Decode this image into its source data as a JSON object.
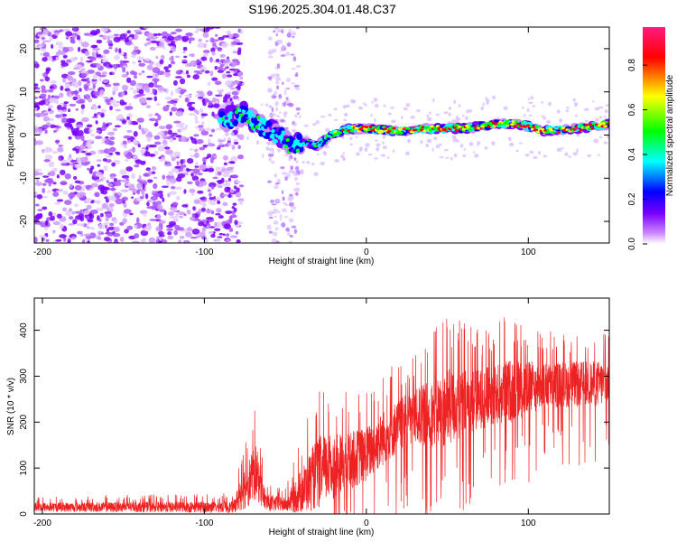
{
  "title": "S196.2025.304.01.48.C37",
  "chart_data": [
    {
      "type": "heatmap",
      "xlabel": "Height of straight line (km)",
      "ylabel": "Frequency (Hz)",
      "xlim": [
        -205,
        150
      ],
      "ylim": [
        -25,
        25
      ],
      "xticks": [
        -200,
        -100,
        0,
        100
      ],
      "yticks": [
        -20,
        -10,
        0,
        10,
        20
      ],
      "colorbar": {
        "label": "Normalized spectral amplitude",
        "range": [
          0,
          0.97
        ],
        "ticks": [
          0.0,
          0.2,
          0.4,
          0.6,
          0.8
        ],
        "colors": [
          "#ffffff",
          "#cc88ff",
          "#7a00ff",
          "#0000ff",
          "#00ffff",
          "#00ff00",
          "#ffff00",
          "#ff0000",
          "#ff1a80"
        ]
      },
      "features": {
        "noise_region_km": [
          -205,
          -85
        ],
        "gap_km": [
          -87,
          -55
        ],
        "signal_start_km": -90,
        "signal_track": [
          {
            "x": -88,
            "f": 3.5
          },
          {
            "x": -75,
            "f": 5.0
          },
          {
            "x": -65,
            "f": 2.0
          },
          {
            "x": -55,
            "f": 0.0
          },
          {
            "x": -45,
            "f": -3.0
          },
          {
            "x": -38,
            "f": -1.5
          },
          {
            "x": -30,
            "f": -2.5
          },
          {
            "x": -20,
            "f": 0.5
          },
          {
            "x": -10,
            "f": 1.5
          },
          {
            "x": 0,
            "f": 1.5
          },
          {
            "x": 20,
            "f": 1.0
          },
          {
            "x": 40,
            "f": 1.5
          },
          {
            "x": 60,
            "f": 1.5
          },
          {
            "x": 80,
            "f": 2.5
          },
          {
            "x": 95,
            "f": 2.5
          },
          {
            "x": 110,
            "f": 1.0
          },
          {
            "x": 130,
            "f": 1.5
          },
          {
            "x": 150,
            "f": 2.5
          }
        ]
      }
    },
    {
      "type": "line",
      "xlabel": "Height of straight line (km)",
      "ylabel": "SNR (10 * v/v)",
      "xlim": [
        -205,
        150
      ],
      "ylim": [
        0,
        470
      ],
      "xticks": [
        -200,
        -100,
        0,
        100
      ],
      "yticks": [
        0,
        100,
        200,
        300,
        400
      ],
      "color": "#ee2222",
      "envelope": [
        {
          "x": -205,
          "base": 15,
          "amp": 20
        },
        {
          "x": -82,
          "base": 15,
          "amp": 25
        },
        {
          "x": -75,
          "base": 60,
          "amp": 100
        },
        {
          "x": -68,
          "base": 90,
          "amp": 120
        },
        {
          "x": -62,
          "base": 25,
          "amp": 40
        },
        {
          "x": -50,
          "base": 20,
          "amp": 30
        },
        {
          "x": -40,
          "base": 50,
          "amp": 100
        },
        {
          "x": -30,
          "base": 90,
          "amp": 160
        },
        {
          "x": -15,
          "base": 110,
          "amp": 130
        },
        {
          "x": 0,
          "base": 130,
          "amp": 120
        },
        {
          "x": 15,
          "base": 180,
          "amp": 120
        },
        {
          "x": 30,
          "base": 210,
          "amp": 120
        },
        {
          "x": 50,
          "base": 230,
          "amp": 170
        },
        {
          "x": 70,
          "base": 250,
          "amp": 130
        },
        {
          "x": 90,
          "base": 270,
          "amp": 140
        },
        {
          "x": 110,
          "base": 280,
          "amp": 100
        },
        {
          "x": 150,
          "base": 285,
          "amp": 100
        }
      ]
    }
  ]
}
